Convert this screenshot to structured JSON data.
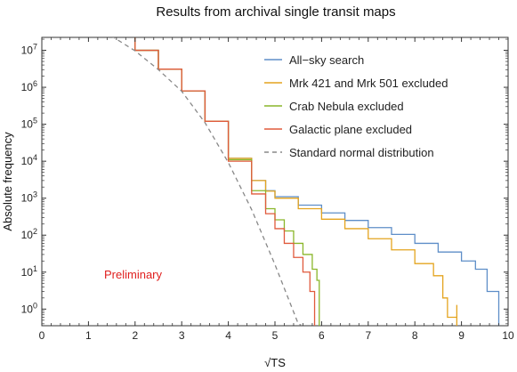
{
  "chart_data": {
    "type": "line",
    "title": "Results from archival single transit maps",
    "xlabel": "√TS",
    "ylabel": "Absolute frequency",
    "xlim": [
      0,
      10
    ],
    "ylim_log10": [
      -0.45,
      7.35
    ],
    "yscale": "log",
    "x_ticks": [
      "0",
      "1",
      "2",
      "3",
      "4",
      "5",
      "6",
      "7",
      "8",
      "9",
      "10"
    ],
    "y_ticks": [
      {
        "base": "10",
        "exp": "0"
      },
      {
        "base": "10",
        "exp": "1"
      },
      {
        "base": "10",
        "exp": "2"
      },
      {
        "base": "10",
        "exp": "3"
      },
      {
        "base": "10",
        "exp": "4"
      },
      {
        "base": "10",
        "exp": "5"
      },
      {
        "base": "10",
        "exp": "6"
      },
      {
        "base": "10",
        "exp": "7"
      }
    ],
    "legend_position": "top-right",
    "annotation": "Preliminary",
    "series": [
      {
        "name": "All−sky search",
        "color": "#5e8ec8",
        "style": "step",
        "x": [
          0,
          0.5,
          1,
          1.5,
          2,
          2.5,
          3,
          3.5,
          4,
          4.5,
          4.8,
          5,
          5.5,
          6,
          6.5,
          7,
          7.5,
          8,
          8.5,
          9,
          9.3,
          9.55,
          9.8
        ],
        "y": [
          72000000,
          62000000,
          45000000,
          24000000,
          10000000,
          3100000,
          800000,
          120000,
          12000,
          3000,
          1600,
          1100,
          650,
          400,
          250,
          160,
          105,
          60,
          35,
          20,
          12,
          3,
          0.6
        ]
      },
      {
        "name": "Mrk 421 and Mrk 501 excluded",
        "color": "#e4a41f",
        "style": "step",
        "x": [
          0,
          0.5,
          1,
          1.5,
          2,
          2.5,
          3,
          3.5,
          4,
          4.5,
          4.8,
          5,
          5.5,
          6,
          6.5,
          7,
          7.5,
          8,
          8.4,
          8.6,
          8.7,
          8.9
        ],
        "y": [
          72000000,
          62000000,
          45000000,
          24000000,
          10000000,
          3100000,
          800000,
          120000,
          12000,
          3000,
          1550,
          1000,
          520,
          270,
          150,
          80,
          40,
          17,
          8,
          2,
          0.6,
          1.3
        ]
      },
      {
        "name": "Crab Nebula excluded",
        "color": "#8ab62a",
        "style": "step",
        "x": [
          0,
          0.5,
          1,
          1.5,
          2,
          2.5,
          3,
          3.5,
          4,
          4.5,
          4.8,
          5,
          5.2,
          5.4,
          5.6,
          5.8,
          5.9,
          5.95
        ],
        "y": [
          72000000,
          62000000,
          45000000,
          24000000,
          10000000,
          3100000,
          800000,
          120000,
          11000,
          1600,
          520,
          260,
          130,
          60,
          30,
          12,
          6,
          0.6
        ]
      },
      {
        "name": "Galactic plane excluded",
        "color": "#e05a3c",
        "style": "step",
        "x": [
          0,
          0.5,
          1,
          1.5,
          2,
          2.5,
          3,
          3.5,
          4,
          4.5,
          4.8,
          5,
          5.2,
          5.4,
          5.6,
          5.75,
          5.85
        ],
        "y": [
          72000000,
          62000000,
          45000000,
          24000000,
          10000000,
          3100000,
          800000,
          120000,
          10000,
          1300,
          380,
          150,
          60,
          25,
          10,
          3,
          0.6
        ]
      },
      {
        "name": "Standard normal distribution",
        "color": "#888888",
        "style": "dashed",
        "x": [
          0,
          0.5,
          1,
          1.5,
          2,
          2.5,
          3,
          3.5,
          4,
          4.5,
          5,
          5.5,
          6,
          6.3
        ],
        "y": [
          72000000,
          63000000,
          45000000,
          24000000,
          9700000,
          3000000,
          780000,
          110000,
          9200,
          490,
          16,
          0.4,
          0.2,
          0.1
        ]
      }
    ]
  }
}
